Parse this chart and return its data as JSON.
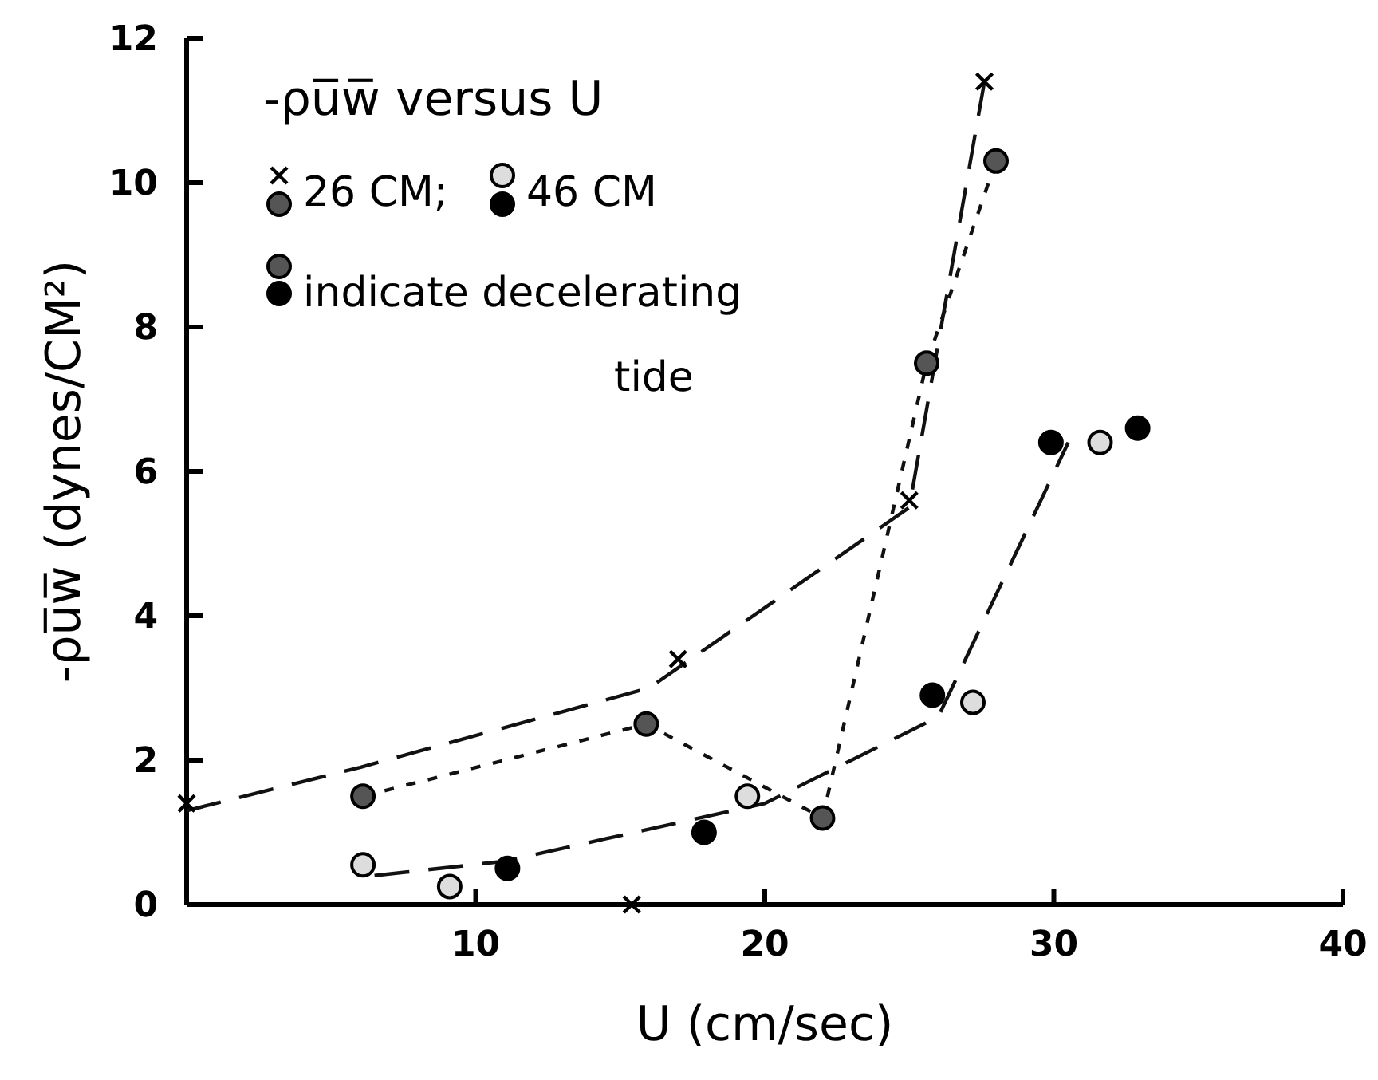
{
  "chart_data": {
    "type": "scatter",
    "title": "-ρu̅w̅ versus U",
    "xlabel": "U (cm/sec)",
    "ylabel": "-ρu̅w̅ (dynes/CM²)",
    "xlim": [
      0,
      40
    ],
    "xticks": [
      10,
      20,
      30,
      40
    ],
    "ylim": [
      0,
      12
    ],
    "yticks": [
      0,
      2,
      4,
      6,
      8,
      10,
      12
    ],
    "grid": false,
    "legend": "top left",
    "annotations": [
      "indicate decelerating tide"
    ],
    "series": [
      {
        "type": "line",
        "line_style": "dashed",
        "marker": "none",
        "color": "#111111",
        "x": [
          0,
          6,
          16,
          25,
          27.6
        ],
        "values": [
          1.3,
          1.9,
          3.0,
          5.5,
          11.4
        ]
      },
      {
        "type": "line",
        "line_style": "dotted",
        "marker": "none",
        "color": "#111111",
        "x": [
          6.1,
          15.9,
          22,
          25.6,
          28
        ],
        "values": [
          1.5,
          2.5,
          1.2,
          7.5,
          10.3
        ]
      },
      {
        "type": "line",
        "line_style": "dashed",
        "marker": "none",
        "color": "#111111",
        "x": [
          6.5,
          11,
          20,
          26,
          30.5
        ],
        "values": [
          0.4,
          0.6,
          1.4,
          2.6,
          6.4
        ]
      },
      {
        "name": "26 CM;",
        "marker": "cross",
        "color": "#000000",
        "x": [
          0,
          15.4,
          17,
          25,
          27.6
        ],
        "values": [
          1.4,
          0,
          3.4,
          5.6,
          11.4
        ]
      },
      {
        "marker": "circle",
        "color": "#555555",
        "x": [
          6.1,
          15.9,
          22,
          25.6,
          28
        ],
        "values": [
          1.5,
          2.5,
          1.2,
          7.5,
          10.3
        ]
      },
      {
        "name": "46 CM",
        "marker": "circle",
        "color": "#dddddd",
        "x": [
          6.1,
          9.1,
          19.4,
          27.2,
          31.6
        ],
        "values": [
          0.55,
          0.25,
          1.5,
          2.8,
          6.4
        ]
      },
      {
        "marker": "circle",
        "color": "#000000",
        "x": [
          11.1,
          17.9,
          25.8,
          29.9,
          32.9
        ],
        "values": [
          0.5,
          1.0,
          2.9,
          6.4,
          6.6
        ]
      }
    ]
  }
}
